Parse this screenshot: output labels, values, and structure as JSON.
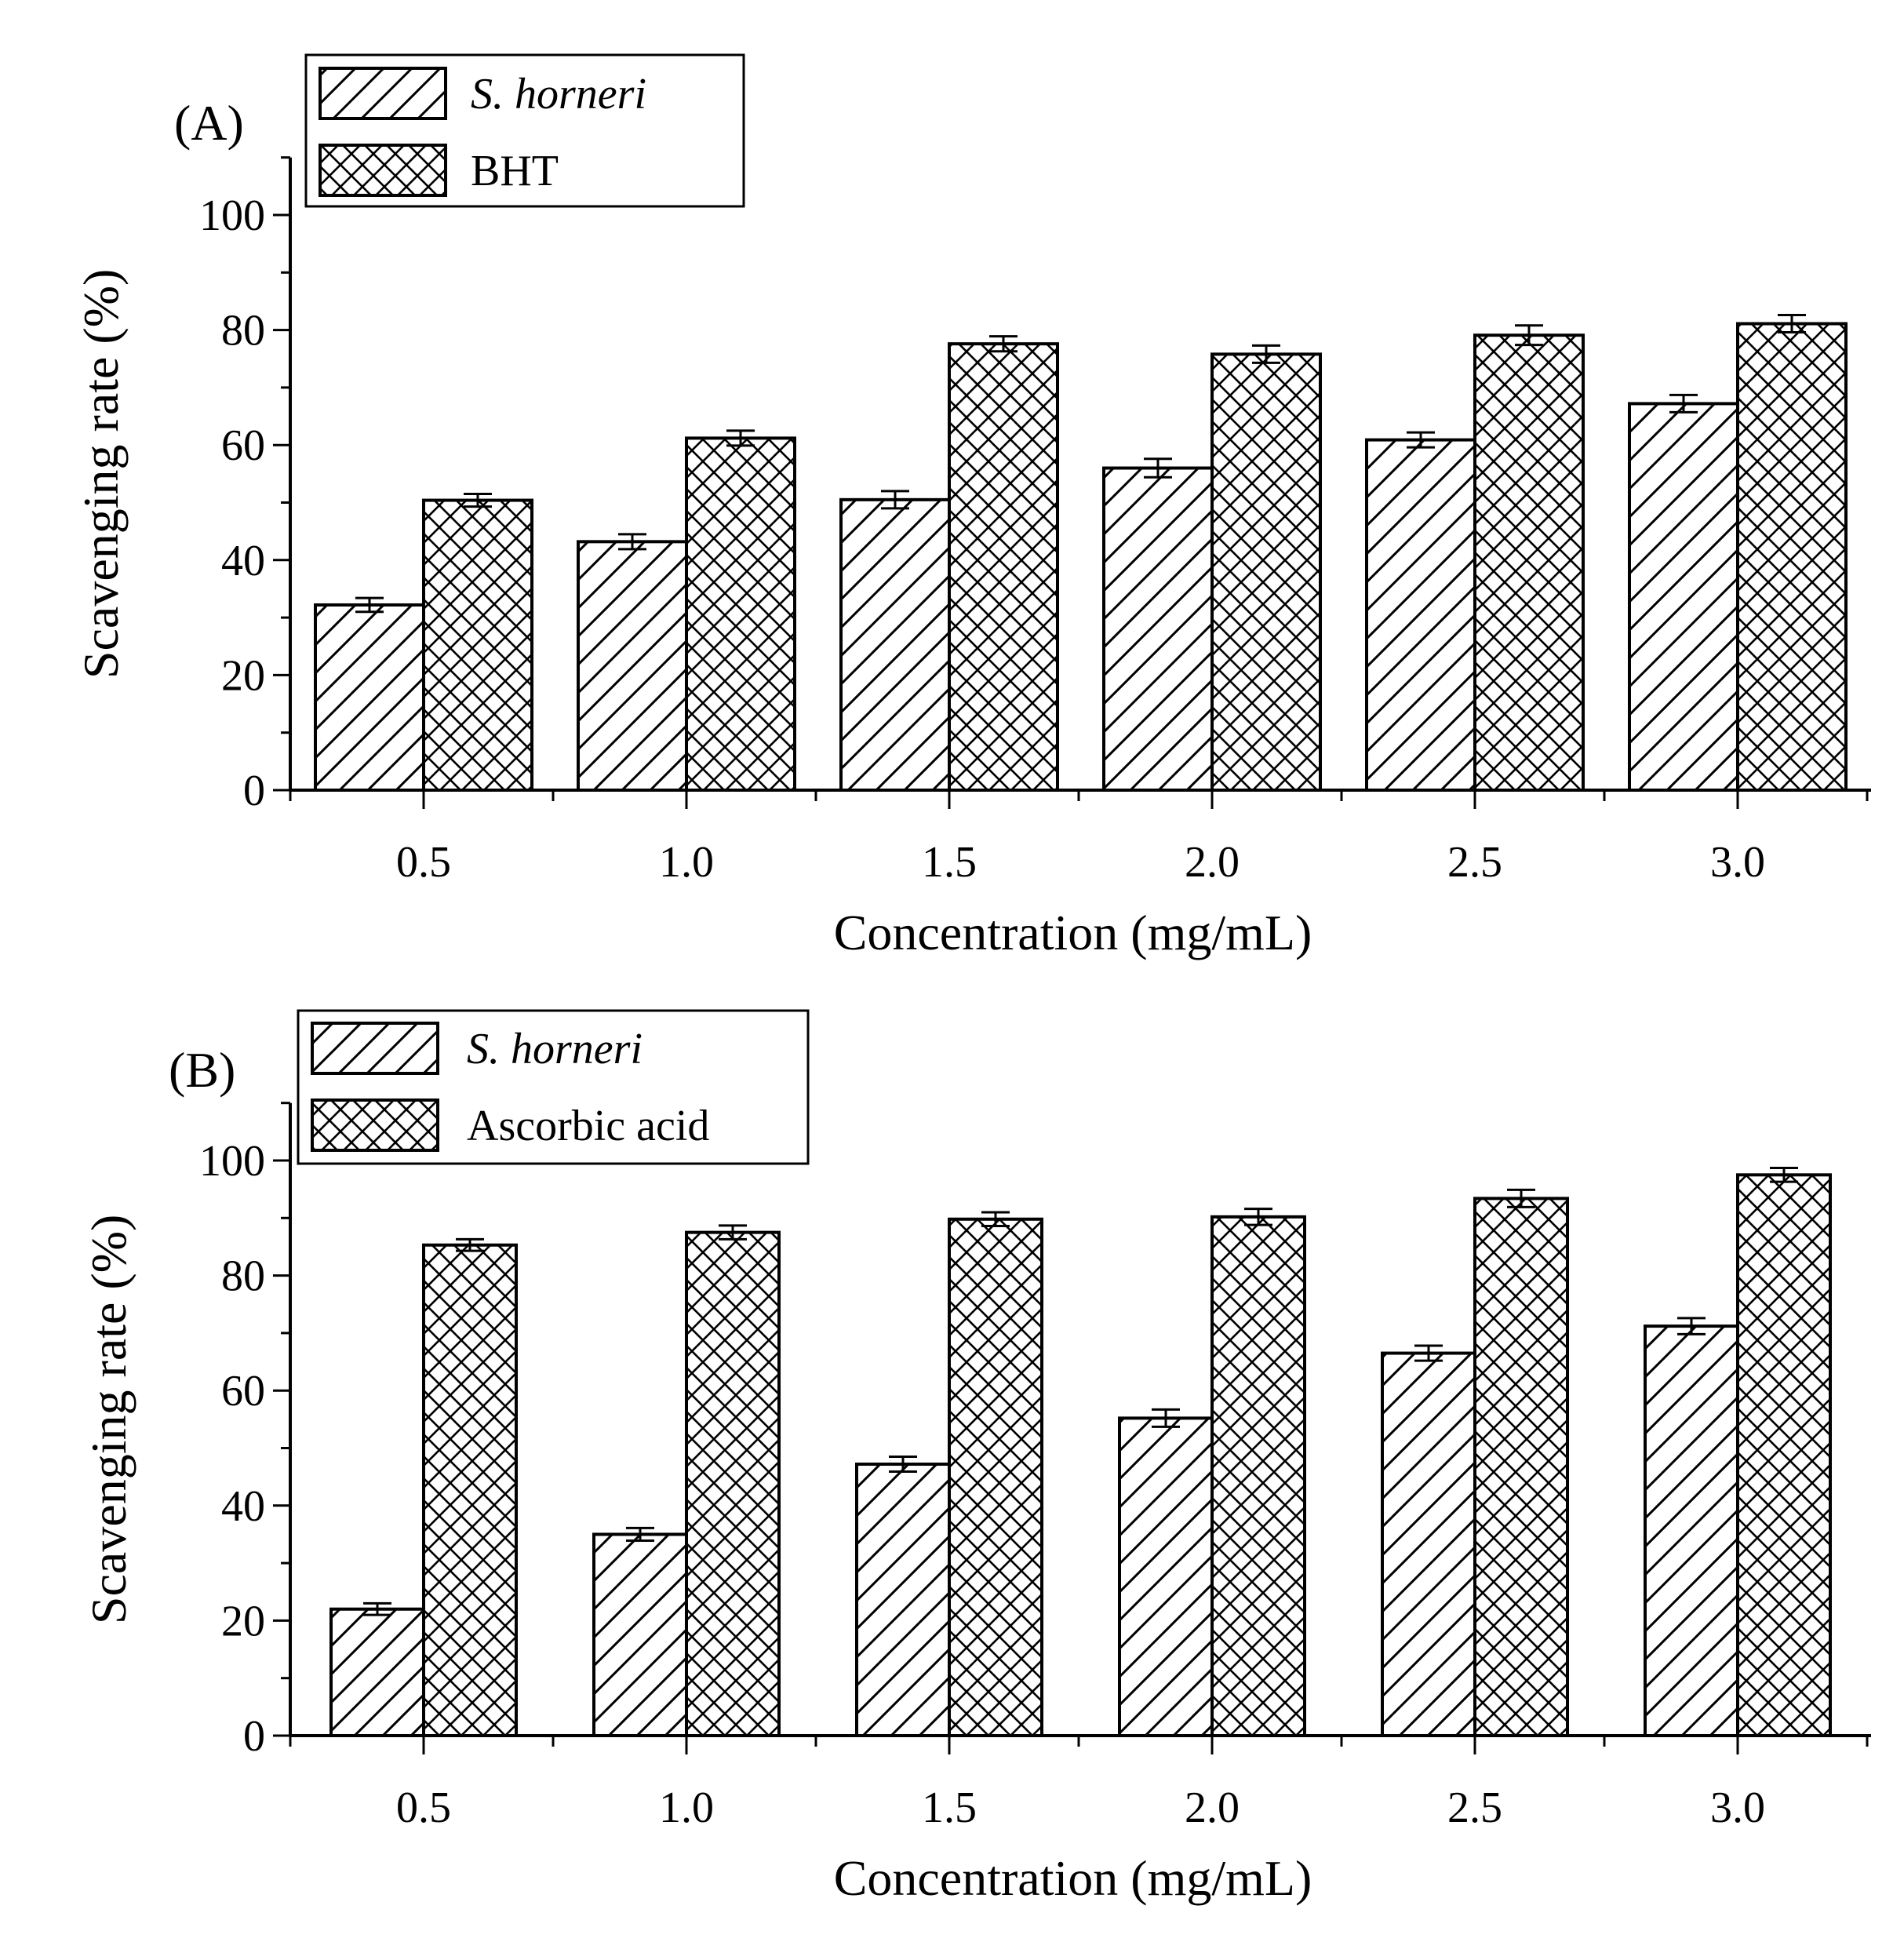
{
  "chart_data": [
    {
      "type": "bar",
      "panel_label": "(A)",
      "categories": [
        "0.5",
        "1.0",
        "1.5",
        "2.0",
        "2.5",
        "3.0"
      ],
      "series": [
        {
          "name": "S. horneri",
          "values": [
            32.2,
            43.2,
            50.5,
            56.0,
            60.9,
            67.2
          ],
          "errors": [
            1.2,
            1.3,
            1.5,
            1.6,
            1.3,
            1.5
          ],
          "pattern": "diagonal-hatch"
        },
        {
          "name": "BHT",
          "values": [
            50.4,
            61.2,
            77.6,
            75.8,
            79.1,
            81.1
          ],
          "errors": [
            1.1,
            1.3,
            1.3,
            1.5,
            1.7,
            1.5
          ],
          "pattern": "cross-hatch"
        }
      ],
      "xlabel": "Concentration (mg/mL)",
      "ylabel": "Scavenging rate (%)",
      "ylim": [
        0,
        110
      ],
      "yticks": [
        "0",
        "20",
        "40",
        "60",
        "80",
        "100"
      ],
      "grid": false,
      "legend_position": "top-left"
    },
    {
      "type": "bar",
      "panel_label": "(B)",
      "categories": [
        "0.5",
        "1.0",
        "1.5",
        "2.0",
        "2.5",
        "3.0"
      ],
      "series": [
        {
          "name": "S. horneri",
          "values": [
            22.0,
            35.0,
            47.2,
            55.2,
            66.5,
            71.2
          ],
          "errors": [
            1.0,
            1.1,
            1.3,
            1.5,
            1.3,
            1.4
          ],
          "pattern": "diagonal-hatch"
        },
        {
          "name": "Ascorbic acid",
          "values": [
            85.3,
            87.5,
            89.8,
            90.2,
            93.4,
            97.5
          ],
          "errors": [
            1.0,
            1.2,
            1.2,
            1.4,
            1.5,
            1.2
          ],
          "pattern": "cross-hatch"
        }
      ],
      "xlabel": "Concentration (mg/mL)",
      "ylabel": "Scavenging rate (%)",
      "ylim": [
        0,
        110
      ],
      "yticks": [
        "0",
        "20",
        "40",
        "60",
        "80",
        "100"
      ],
      "grid": false,
      "legend_position": "top-left"
    }
  ]
}
